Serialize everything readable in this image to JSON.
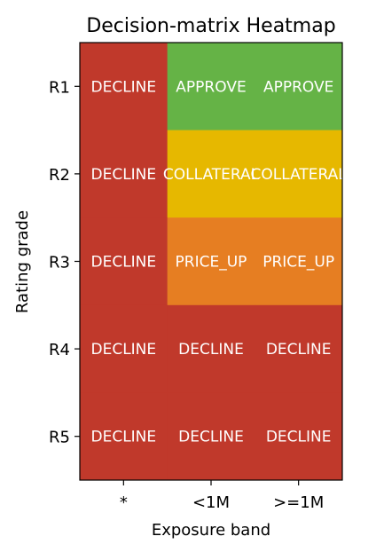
{
  "chart_data": {
    "type": "heatmap",
    "title": "Decision-matrix Heatmap",
    "xlabel": "Exposure band",
    "ylabel": "Rating grade",
    "x_categories": [
      "*",
      "<1M",
      ">=1M"
    ],
    "y_categories": [
      "R1",
      "R2",
      "R3",
      "R4",
      "R5"
    ],
    "cells": [
      [
        "DECLINE",
        "APPROVE",
        "APPROVE"
      ],
      [
        "DECLINE",
        "COLLATERAL",
        "COLLATERAL"
      ],
      [
        "DECLINE",
        "PRICE_UP",
        "PRICE_UP"
      ],
      [
        "DECLINE",
        "DECLINE",
        "DECLINE"
      ],
      [
        "DECLINE",
        "DECLINE",
        "DECLINE"
      ]
    ],
    "colors": {
      "DECLINE": "#c0392b",
      "APPROVE": "#65b346",
      "COLLATERAL": "#e6b800",
      "PRICE_UP": "#e67e22"
    },
    "cell_text_color": "#ffffff",
    "grid": false,
    "legend": "none"
  }
}
